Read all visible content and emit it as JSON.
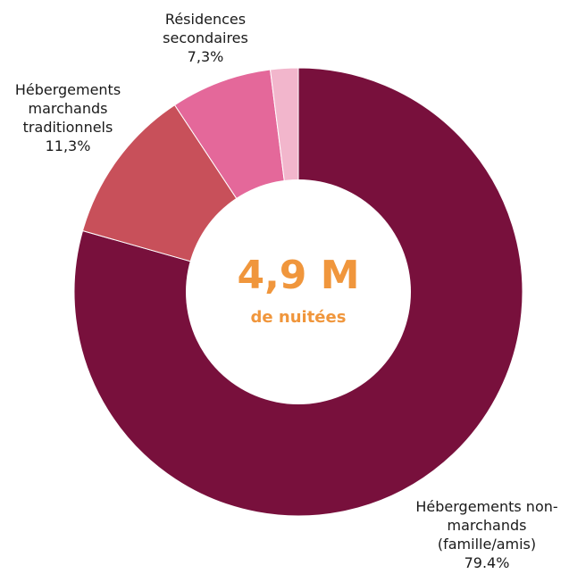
{
  "chart_data": {
    "type": "pie",
    "variant": "donut",
    "center": {
      "value": "4,9 M",
      "sub": "de nuitées"
    },
    "slices": [
      {
        "id": "non-marchands",
        "value": 79.4,
        "color": "#78103c",
        "label_lines": [
          "Hébergements non-",
          "marchands",
          "(famille/amis)",
          "79.4%"
        ]
      },
      {
        "id": "marchands-traditionnels",
        "value": 11.3,
        "color": "#c8505a",
        "label_lines": [
          "Hébergements",
          "marchands",
          "traditionnels",
          "11,3%"
        ]
      },
      {
        "id": "residences-secondaires",
        "value": 7.3,
        "color": "#e4689a",
        "label_lines": [
          "Résidences",
          "secondaires",
          "7,3%"
        ]
      },
      {
        "id": "autre",
        "value": 2.0,
        "color": "#f2b6cc",
        "label_lines": []
      }
    ]
  }
}
